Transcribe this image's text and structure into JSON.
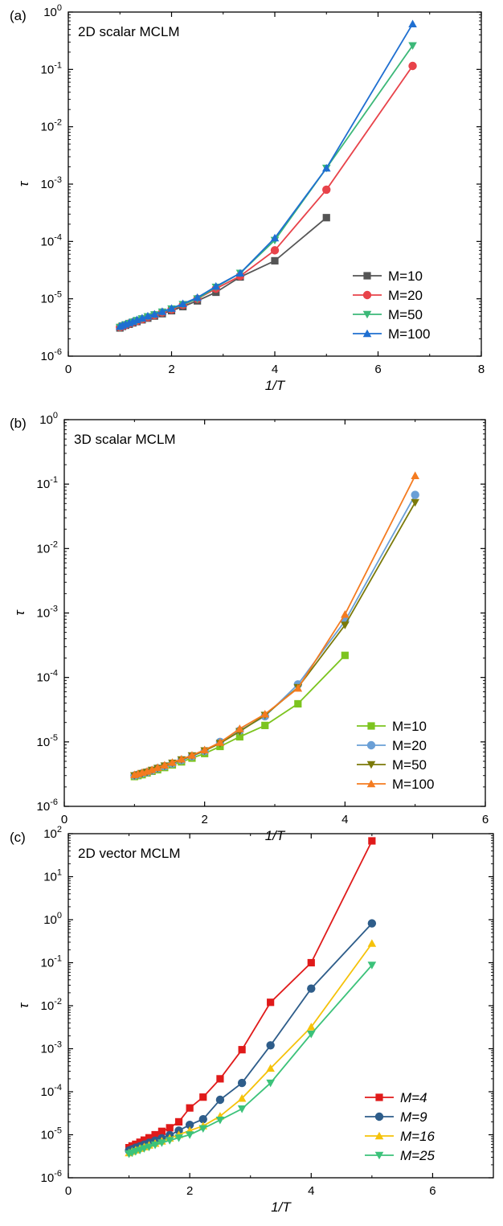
{
  "colors": {
    "axis": "#000000",
    "background": "#ffffff"
  },
  "chart_data": [
    {
      "type": "line",
      "panel_label": "(a)",
      "title": "2D scalar MCLM",
      "xlabel": "1/T",
      "ylabel": "τ",
      "yscale": "log",
      "xlim": [
        0,
        8
      ],
      "ylim": [
        1e-06,
        1
      ],
      "xticks": [
        {
          "value": 0,
          "label": "0"
        },
        {
          "value": 2,
          "label": "2"
        },
        {
          "value": 4,
          "label": "4"
        },
        {
          "value": 6,
          "label": "6"
        },
        {
          "value": 8,
          "label": "8"
        }
      ],
      "yticks": [
        {
          "value": -6,
          "mant": "10",
          "exp": "-6"
        },
        {
          "value": -5,
          "mant": "10",
          "exp": "-5"
        },
        {
          "value": -4,
          "mant": "10",
          "exp": "-4"
        },
        {
          "value": -3,
          "mant": "10",
          "exp": "-3"
        },
        {
          "value": -2,
          "mant": "10",
          "exp": "-2"
        },
        {
          "value": -1,
          "mant": "10",
          "exp": "-1"
        },
        {
          "value": 0,
          "mant": "10",
          "exp": "0"
        }
      ],
      "legend_position": "bottom-right",
      "legend_italic": false,
      "series": [
        {
          "name": "M=10",
          "color": "#555555",
          "marker": "square",
          "x": [
            1.0,
            1.05,
            1.11,
            1.18,
            1.25,
            1.33,
            1.43,
            1.54,
            1.67,
            1.82,
            2.0,
            2.22,
            2.5,
            2.86,
            3.33,
            4.0,
            5.0
          ],
          "y": [
            3.1e-06,
            3.3e-06,
            3.45e-06,
            3.6e-06,
            3.8e-06,
            4e-06,
            4.3e-06,
            4.6e-06,
            5e-06,
            5.5e-06,
            6.2e-06,
            7.3e-06,
            9.2e-06,
            1.3e-05,
            2.4e-05,
            4.6e-05,
            0.00026
          ]
        },
        {
          "name": "M=20",
          "color": "#e8434a",
          "marker": "circle",
          "x": [
            1.0,
            1.05,
            1.11,
            1.18,
            1.25,
            1.33,
            1.43,
            1.54,
            1.67,
            1.82,
            2.0,
            2.22,
            2.5,
            2.86,
            3.33,
            4.0,
            5.0,
            6.67
          ],
          "y": [
            3.2e-06,
            3.35e-06,
            3.5e-06,
            3.7e-06,
            3.9e-06,
            4.1e-06,
            4.4e-06,
            4.8e-06,
            5.2e-06,
            5.8e-06,
            6.5e-06,
            7.8e-06,
            1e-05,
            1.5e-05,
            2.5e-05,
            7e-05,
            0.0008,
            0.115
          ]
        },
        {
          "name": "M=50",
          "color": "#3cb878",
          "marker": "triangle-down",
          "x": [
            1.0,
            1.05,
            1.11,
            1.18,
            1.25,
            1.33,
            1.43,
            1.54,
            1.67,
            1.82,
            2.0,
            2.22,
            2.5,
            2.86,
            3.33,
            4.0,
            5.0,
            6.67
          ],
          "y": [
            3.2e-06,
            3.4e-06,
            3.55e-06,
            3.75e-06,
            3.95e-06,
            4.2e-06,
            4.5e-06,
            4.9e-06,
            5.3e-06,
            5.9e-06,
            6.7e-06,
            8e-06,
            1e-05,
            1.6e-05,
            2.8e-05,
            0.000105,
            0.0019,
            0.26
          ]
        },
        {
          "name": "M=100",
          "color": "#1f6fd1",
          "marker": "triangle-up",
          "x": [
            1.0,
            1.05,
            1.11,
            1.18,
            1.25,
            1.33,
            1.43,
            1.54,
            1.67,
            1.82,
            2.0,
            2.22,
            2.5,
            2.86,
            3.33,
            4.0,
            5.0,
            6.67
          ],
          "y": [
            3.3e-06,
            3.45e-06,
            3.6e-06,
            3.8e-06,
            4e-06,
            4.3e-06,
            4.6e-06,
            5e-06,
            5.4e-06,
            6e-06,
            6.8e-06,
            8.2e-06,
            1.05e-05,
            1.65e-05,
            2.8e-05,
            0.000115,
            0.0019,
            0.62
          ]
        }
      ]
    },
    {
      "type": "line",
      "panel_label": "(b)",
      "title": "3D scalar MCLM",
      "xlabel": "1/T",
      "ylabel": "τ",
      "yscale": "log",
      "xlim": [
        0,
        6
      ],
      "ylim": [
        1e-06,
        1
      ],
      "xticks": [
        {
          "value": 0,
          "label": "0"
        },
        {
          "value": 2,
          "label": "2"
        },
        {
          "value": 4,
          "label": "4"
        },
        {
          "value": 6,
          "label": "6"
        }
      ],
      "yticks": [
        {
          "value": -6,
          "mant": "10",
          "exp": "-6"
        },
        {
          "value": -5,
          "mant": "10",
          "exp": "-5"
        },
        {
          "value": -4,
          "mant": "10",
          "exp": "-4"
        },
        {
          "value": -3,
          "mant": "10",
          "exp": "-3"
        },
        {
          "value": -2,
          "mant": "10",
          "exp": "-2"
        },
        {
          "value": -1,
          "mant": "10",
          "exp": "-1"
        },
        {
          "value": 0,
          "mant": "10",
          "exp": "0"
        }
      ],
      "legend_position": "bottom-right",
      "legend_italic": false,
      "series": [
        {
          "name": "M=10",
          "color": "#7cc41f",
          "marker": "square",
          "x": [
            1.0,
            1.05,
            1.11,
            1.18,
            1.25,
            1.33,
            1.43,
            1.54,
            1.67,
            1.82,
            2.0,
            2.22,
            2.5,
            2.86,
            3.33,
            4.0
          ],
          "y": [
            2.9e-06,
            3e-06,
            3.1e-06,
            3.3e-06,
            3.5e-06,
            3.7e-06,
            4e-06,
            4.4e-06,
            4.9e-06,
            5.6e-06,
            6.6e-06,
            8.5e-06,
            1.2e-05,
            1.8e-05,
            3.9e-05,
            0.00022
          ]
        },
        {
          "name": "M=20",
          "color": "#6a9fd6",
          "marker": "circle",
          "x": [
            1.0,
            1.05,
            1.11,
            1.18,
            1.25,
            1.33,
            1.43,
            1.54,
            1.67,
            1.82,
            2.0,
            2.22,
            2.5,
            2.86,
            3.33,
            4.0,
            5.0
          ],
          "y": [
            3e-06,
            3.1e-06,
            3.25e-06,
            3.4e-06,
            3.6e-06,
            3.9e-06,
            4.2e-06,
            4.6e-06,
            5.2e-06,
            6e-06,
            7.2e-06,
            1e-05,
            1.5e-05,
            2.5e-05,
            7.8e-05,
            0.00075,
            0.068
          ]
        },
        {
          "name": "M=50",
          "color": "#7b7a0a",
          "marker": "triangle-down",
          "x": [
            1.0,
            1.05,
            1.11,
            1.18,
            1.25,
            1.33,
            1.43,
            1.54,
            1.67,
            1.82,
            2.0,
            2.22,
            2.5,
            2.86,
            3.33,
            4.0,
            5.0
          ],
          "y": [
            3e-06,
            3.1e-06,
            3.25e-06,
            3.4e-06,
            3.65e-06,
            3.9e-06,
            4.25e-06,
            4.7e-06,
            5.3e-06,
            6.1e-06,
            7.3e-06,
            9.5e-06,
            1.45e-05,
            2.6e-05,
            7e-05,
            0.00065,
            0.052
          ]
        },
        {
          "name": "M=100",
          "color": "#f47b20",
          "marker": "triangle-up",
          "x": [
            1.0,
            1.05,
            1.11,
            1.18,
            1.25,
            1.33,
            1.43,
            1.54,
            1.67,
            1.82,
            2.0,
            2.22,
            2.5,
            2.86,
            3.33,
            4.0,
            5.0
          ],
          "y": [
            3.1e-06,
            3.2e-06,
            3.35e-06,
            3.5e-06,
            3.7e-06,
            4e-06,
            4.35e-06,
            4.8e-06,
            5.4e-06,
            6.2e-06,
            7.5e-06,
            9.8e-06,
            1.6e-05,
            2.7e-05,
            6.8e-05,
            0.00095,
            0.135
          ]
        }
      ]
    },
    {
      "type": "line",
      "panel_label": "(c)",
      "title": "2D vector MCLM",
      "xlabel": "1/T",
      "ylabel": "τ",
      "yscale": "log",
      "xlim": [
        0,
        7
      ],
      "ylim": [
        1e-06,
        100
      ],
      "xticks": [
        {
          "value": 0,
          "label": "0"
        },
        {
          "value": 2,
          "label": "2"
        },
        {
          "value": 4,
          "label": "4"
        },
        {
          "value": 6,
          "label": "6"
        }
      ],
      "yticks": [
        {
          "value": -6,
          "mant": "10",
          "exp": "-6"
        },
        {
          "value": -5,
          "mant": "10",
          "exp": "-5"
        },
        {
          "value": -4,
          "mant": "10",
          "exp": "-4"
        },
        {
          "value": -3,
          "mant": "10",
          "exp": "-3"
        },
        {
          "value": -2,
          "mant": "10",
          "exp": "-2"
        },
        {
          "value": -1,
          "mant": "10",
          "exp": "-1"
        },
        {
          "value": 0,
          "mant": "10",
          "exp": "0"
        },
        {
          "value": 1,
          "mant": "10",
          "exp": "1"
        },
        {
          "value": 2,
          "mant": "10",
          "exp": "2"
        }
      ],
      "legend_position": "bottom-right",
      "legend_italic": true,
      "series": [
        {
          "name": "M=4",
          "color": "#e01a1a",
          "marker": "square",
          "x": [
            1.0,
            1.05,
            1.11,
            1.18,
            1.25,
            1.33,
            1.43,
            1.54,
            1.67,
            1.82,
            2.0,
            2.22,
            2.5,
            2.86,
            3.33,
            4.0,
            5.0
          ],
          "y": [
            5e-06,
            5.5e-06,
            6e-06,
            6.7e-06,
            7.5e-06,
            8.5e-06,
            1e-05,
            1.2e-05,
            1.45e-05,
            2e-05,
            4.2e-05,
            7.5e-05,
            0.0002,
            0.00095,
            0.012,
            0.1,
            68
          ]
        },
        {
          "name": "M=9",
          "color": "#2e5d8a",
          "marker": "circle",
          "x": [
            1.0,
            1.05,
            1.11,
            1.18,
            1.25,
            1.33,
            1.43,
            1.54,
            1.67,
            1.82,
            2.0,
            2.22,
            2.5,
            2.86,
            3.33,
            4.0,
            5.0
          ],
          "y": [
            4.3e-06,
            4.6e-06,
            5e-06,
            5.4e-06,
            5.9e-06,
            6.5e-06,
            7.3e-06,
            8.3e-06,
            9.8e-06,
            1.25e-05,
            1.7e-05,
            2.3e-05,
            6.5e-05,
            0.00016,
            0.0012,
            0.025,
            0.82
          ]
        },
        {
          "name": "M=16",
          "color": "#f5c20a",
          "marker": "triangle-up",
          "x": [
            1.0,
            1.05,
            1.11,
            1.18,
            1.25,
            1.33,
            1.43,
            1.54,
            1.67,
            1.82,
            2.0,
            2.22,
            2.5,
            2.86,
            3.33,
            4.0,
            5.0
          ],
          "y": [
            3.8e-06,
            4.1e-06,
            4.4e-06,
            4.8e-06,
            5.2e-06,
            5.7e-06,
            6.3e-06,
            7.1e-06,
            8.3e-06,
            1e-05,
            1.25e-05,
            1.6e-05,
            2.7e-05,
            7e-05,
            0.00035,
            0.0032,
            0.28
          ]
        },
        {
          "name": "M=25",
          "color": "#3cc27a",
          "marker": "triangle-down",
          "x": [
            1.0,
            1.05,
            1.11,
            1.18,
            1.25,
            1.33,
            1.43,
            1.54,
            1.67,
            1.82,
            2.0,
            2.22,
            2.5,
            2.86,
            3.33,
            4.0,
            5.0
          ],
          "y": [
            3.6e-06,
            3.8e-06,
            4.1e-06,
            4.4e-06,
            4.8e-06,
            5.2e-06,
            5.8e-06,
            6.5e-06,
            7.4e-06,
            8.5e-06,
            1e-05,
            1.4e-05,
            2.2e-05,
            4e-05,
            0.00016,
            0.0022,
            0.088
          ]
        }
      ]
    }
  ]
}
